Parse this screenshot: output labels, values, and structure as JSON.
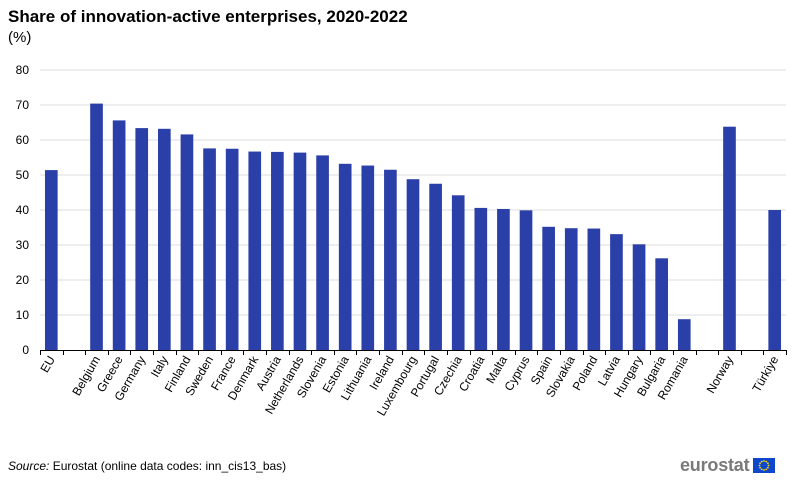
{
  "chart_data": {
    "type": "bar",
    "title": "Share of innovation-active enterprises, 2020-2022",
    "unit": "(%)",
    "xlabel": "",
    "ylabel": "",
    "ylim": [
      0,
      80
    ],
    "yticks": [
      0,
      10,
      20,
      30,
      40,
      50,
      60,
      70,
      80
    ],
    "grid": true,
    "bar_color": "#2b3fa8",
    "categories": [
      "EU",
      "",
      "Belgium",
      "Greece",
      "Germany",
      "Italy",
      "Finland",
      "Sweden",
      "France",
      "Denmark",
      "Austria",
      "Netherlands",
      "Slovenia",
      "Estonia",
      "Lithuania",
      "Ireland",
      "Luxembourg",
      "Portugal",
      "Czechia",
      "Croatia",
      "Malta",
      "Cyprus",
      "Spain",
      "Slovakia",
      "Poland",
      "Latvia",
      "Hungary",
      "Bulgaria",
      "Romania",
      "",
      "Norway",
      "",
      "Türkiye"
    ],
    "values": [
      51.4,
      null,
      70.4,
      65.6,
      63.4,
      63.2,
      61.6,
      57.6,
      57.5,
      56.7,
      56.6,
      56.4,
      55.6,
      53.2,
      52.7,
      51.5,
      48.8,
      47.5,
      44.2,
      40.6,
      40.3,
      39.9,
      35.2,
      34.8,
      34.7,
      33.1,
      30.2,
      26.2,
      8.8,
      null,
      63.8,
      null,
      40.0
    ]
  },
  "source": {
    "label": "Source:",
    "text": " Eurostat (online data codes: inn_cis13_bas)"
  },
  "logo": {
    "text": "eurostat"
  }
}
